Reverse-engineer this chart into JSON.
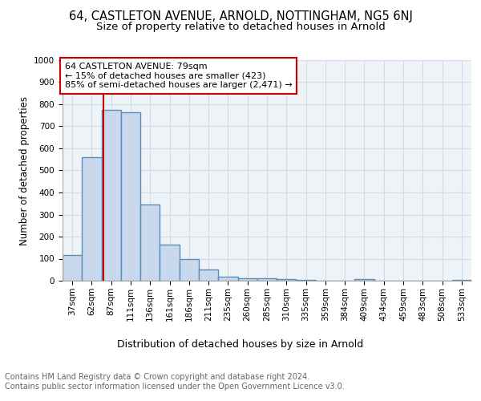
{
  "title": "64, CASTLETON AVENUE, ARNOLD, NOTTINGHAM, NG5 6NJ",
  "subtitle": "Size of property relative to detached houses in Arnold",
  "xlabel": "Distribution of detached houses by size in Arnold",
  "ylabel": "Number of detached properties",
  "categories": [
    "37sqm",
    "62sqm",
    "87sqm",
    "111sqm",
    "136sqm",
    "161sqm",
    "186sqm",
    "211sqm",
    "235sqm",
    "260sqm",
    "285sqm",
    "310sqm",
    "335sqm",
    "359sqm",
    "384sqm",
    "409sqm",
    "434sqm",
    "459sqm",
    "483sqm",
    "508sqm",
    "533sqm"
  ],
  "values": [
    115,
    560,
    775,
    765,
    345,
    165,
    97,
    50,
    20,
    12,
    10,
    6,
    2,
    1,
    0,
    8,
    0,
    0,
    0,
    0,
    5
  ],
  "bar_color": "#c9d9ed",
  "bar_edge_color": "#5b8db8",
  "bar_linewidth": 1.0,
  "grid_color": "#d0dce8",
  "background_color": "#eef3f8",
  "annotation_text": "64 CASTLETON AVENUE: 79sqm\n← 15% of detached houses are smaller (423)\n85% of semi-detached houses are larger (2,471) →",
  "annotation_box_color": "#ffffff",
  "annotation_box_edge_color": "#cc0000",
  "vline_x": 1.58,
  "vline_color": "#cc0000",
  "ylim": [
    0,
    1000
  ],
  "yticks": [
    0,
    100,
    200,
    300,
    400,
    500,
    600,
    700,
    800,
    900,
    1000
  ],
  "footnote": "Contains HM Land Registry data © Crown copyright and database right 2024.\nContains public sector information licensed under the Open Government Licence v3.0.",
  "title_fontsize": 10.5,
  "subtitle_fontsize": 9.5,
  "xlabel_fontsize": 9,
  "ylabel_fontsize": 8.5,
  "tick_fontsize": 7.5,
  "annotation_fontsize": 8,
  "footnote_fontsize": 7
}
